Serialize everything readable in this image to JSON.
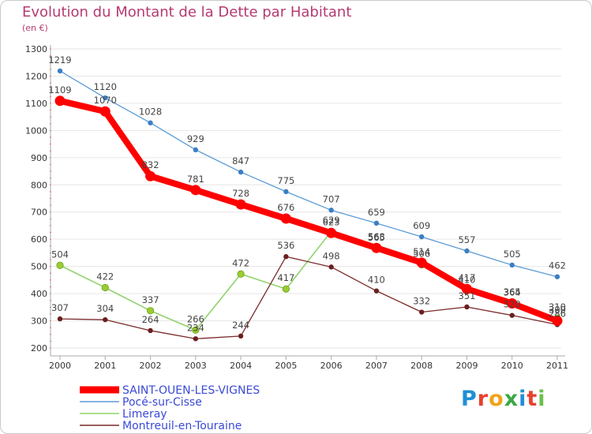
{
  "title": "Evolution du Montant de la Dette par Habitant",
  "subtitle": "(en €)",
  "logo": {
    "text": "Proxiti",
    "colors": [
      "#1f8fd6",
      "#e8402f",
      "#f0a21a",
      "#3aa845",
      "#1f8fd6",
      "#e8402f",
      "#6bc04b"
    ]
  },
  "chart_data": {
    "type": "line",
    "x": [
      2000,
      2001,
      2002,
      2003,
      2004,
      2005,
      2006,
      2007,
      2008,
      2009,
      2010,
      2011
    ],
    "ylim": [
      200,
      1300
    ],
    "yticks": [
      200,
      300,
      400,
      500,
      600,
      700,
      800,
      900,
      1000,
      1100,
      1200,
      1300
    ],
    "grid": "horizontal",
    "legend_position": "bottom-left",
    "series": [
      {
        "name": "Pocé-sur-Cisse",
        "color": "#5b9bd5",
        "values": [
          1219,
          1120,
          1028,
          929,
          847,
          775,
          707,
          659,
          609,
          557,
          505,
          462
        ]
      },
      {
        "name": "Limeray",
        "color": "#90d36a",
        "values": [
          504,
          422,
          337,
          266,
          472,
          417,
          629,
          565,
          506,
          410,
          365,
          310
        ]
      },
      {
        "name": "Montreuil-en-Touraine",
        "color": "#7a2a2a",
        "values": [
          307,
          304,
          264,
          234,
          244,
          536,
          498,
          410,
          332,
          351,
          320,
          286
        ]
      },
      {
        "name": "SAINT-OUEN-LES-VIGNES",
        "color": "#ff0000",
        "values": [
          1109,
          1070,
          832,
          781,
          728,
          676,
          623,
          568,
          514,
          417,
          364,
          300
        ]
      }
    ]
  }
}
